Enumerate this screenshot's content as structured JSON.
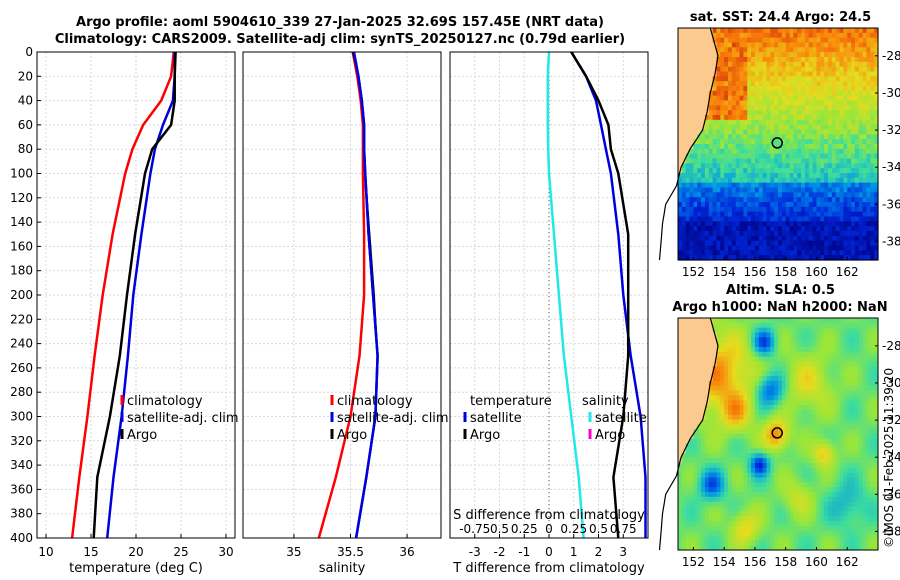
{
  "header": {
    "line1": "Argo profile: aoml 5904610_339 27-Jan-2025 32.69S 157.45E (NRT data)",
    "line2": "Climatology: CARS2009. Satellite-adj clim: synTS_20250127.nc (0.79d earlier)"
  },
  "sst_map": {
    "title": "sat. SST: 24.4 Argo: 24.5"
  },
  "sla_map": {
    "title1": "Altim. SLA: 0.5",
    "title2": "Argo h1000: NaN h2000: NaN"
  },
  "watermark": "©IMOS 01-Feb-2025 11:39:20",
  "colors": {
    "climatology": "#ff0000",
    "satellite": "#0000dd",
    "argo": "#000000",
    "sat_salinity_diff": "#22e8e8",
    "argo_salinity_diff": "#ff00cc",
    "land": "#fcc98f"
  },
  "chart_data": [
    {
      "type": "line",
      "name": "temperature",
      "xlabel": "temperature (deg C)",
      "ylabel": "",
      "xlim": [
        9,
        31
      ],
      "ylim": [
        400,
        0
      ],
      "xticks": [
        10,
        15,
        20,
        25,
        30
      ],
      "yticks": [
        0,
        20,
        40,
        60,
        80,
        100,
        120,
        140,
        160,
        180,
        200,
        220,
        240,
        260,
        280,
        300,
        320,
        340,
        360,
        380,
        400
      ],
      "depth": [
        0,
        20,
        40,
        60,
        80,
        100,
        150,
        200,
        250,
        300,
        350,
        400
      ],
      "series": [
        {
          "name": "climatology",
          "values": [
            24.2,
            23.9,
            22.8,
            20.8,
            19.6,
            18.8,
            17.4,
            16.3,
            15.4,
            14.6,
            13.7,
            12.9
          ]
        },
        {
          "name": "satellite-adj. clim",
          "values": [
            24.3,
            24.3,
            24.1,
            23.0,
            22.1,
            21.6,
            20.6,
            19.7,
            19.1,
            18.4,
            17.5,
            16.8
          ]
        },
        {
          "name": "Argo",
          "values": [
            24.4,
            24.3,
            24.3,
            23.9,
            21.8,
            21.0,
            19.9,
            19.0,
            18.2,
            17.1,
            15.7,
            15.3
          ]
        }
      ],
      "legend": [
        "climatology",
        "satellite-adj. clim",
        "Argo"
      ]
    },
    {
      "type": "line",
      "name": "salinity",
      "xlabel": "salinity",
      "ylabel": "",
      "xlim": [
        34.55,
        36.3
      ],
      "ylim": [
        400,
        0
      ],
      "xticks": [
        35,
        35.5,
        36
      ],
      "depth": [
        0,
        20,
        40,
        60,
        80,
        100,
        150,
        200,
        250,
        300,
        350,
        400
      ],
      "series": [
        {
          "name": "climatology",
          "values": [
            35.52,
            35.56,
            35.59,
            35.61,
            35.61,
            35.61,
            35.62,
            35.62,
            35.58,
            35.5,
            35.37,
            35.22
          ]
        },
        {
          "name": "satellite-adj. clim",
          "values": [
            35.53,
            35.57,
            35.6,
            35.62,
            35.62,
            35.63,
            35.66,
            35.7,
            35.74,
            35.72,
            35.64,
            35.55
          ]
        },
        {
          "name": "Argo",
          "values": [
            35.52,
            35.57,
            35.6,
            35.62,
            35.62,
            35.63,
            35.67,
            35.71,
            35.74,
            35.72,
            35.64,
            35.55
          ]
        }
      ],
      "legend": [
        "climatology",
        "satellite-adj. clim",
        "Argo"
      ]
    },
    {
      "type": "line",
      "name": "difference",
      "xlabel": "T difference from climatology",
      "x2label": "S difference from climatology",
      "xlim": [
        -4,
        4
      ],
      "ylim": [
        400,
        0
      ],
      "xticks": [
        -3,
        -2,
        -1,
        0,
        1,
        2,
        3
      ],
      "x2ticks": [
        "-0.75",
        "0.5",
        "0.25",
        "0",
        "0.25",
        "0.5",
        "0.75"
      ],
      "depth": [
        0,
        20,
        40,
        60,
        80,
        100,
        150,
        200,
        250,
        300,
        350,
        400
      ],
      "series": [
        {
          "name": "temperature satellite",
          "values": [
            0.9,
            1.5,
            1.9,
            2.1,
            2.3,
            2.5,
            2.8,
            3.0,
            3.3,
            3.7,
            3.9,
            3.9
          ]
        },
        {
          "name": "temperature Argo",
          "values": [
            0.9,
            1.5,
            2.0,
            2.4,
            2.5,
            2.8,
            3.2,
            3.2,
            3.2,
            3.0,
            2.6,
            2.8
          ]
        },
        {
          "name": "salinity satellite",
          "values": [
            0.0,
            -0.05,
            -0.05,
            -0.05,
            -0.03,
            0.0,
            0.2,
            0.4,
            0.6,
            0.9,
            1.2,
            1.4
          ]
        },
        {
          "name": "salinity Argo",
          "values": [
            0.0,
            -0.05,
            -0.05,
            -0.05,
            -0.03,
            0.0,
            0.2,
            0.4,
            0.6,
            0.9,
            1.2,
            1.4
          ]
        }
      ],
      "legend_temperature": {
        "title": "temperature",
        "items": [
          "satellite",
          "Argo"
        ]
      },
      "legend_salinity": {
        "title": "salinity",
        "items": [
          "satellite",
          "Argo"
        ]
      }
    },
    {
      "type": "heatmap",
      "name": "sat_sst_map",
      "xlim": [
        151,
        164
      ],
      "ylim": [
        -39,
        -26.5
      ],
      "xticks": [
        152,
        154,
        156,
        158,
        160,
        162
      ],
      "yticks": [
        -28,
        -30,
        -32,
        -34,
        -36,
        -38
      ],
      "argo_position": [
        157.45,
        -32.69
      ]
    },
    {
      "type": "heatmap",
      "name": "altimetry_sla_map",
      "xlim": [
        151,
        164
      ],
      "ylim": [
        -39,
        -26.5
      ],
      "xticks": [
        152,
        154,
        156,
        158,
        160,
        162
      ],
      "yticks": [
        -28,
        -30,
        -32,
        -34,
        -36,
        -38
      ],
      "argo_position": [
        157.45,
        -32.69
      ]
    }
  ]
}
